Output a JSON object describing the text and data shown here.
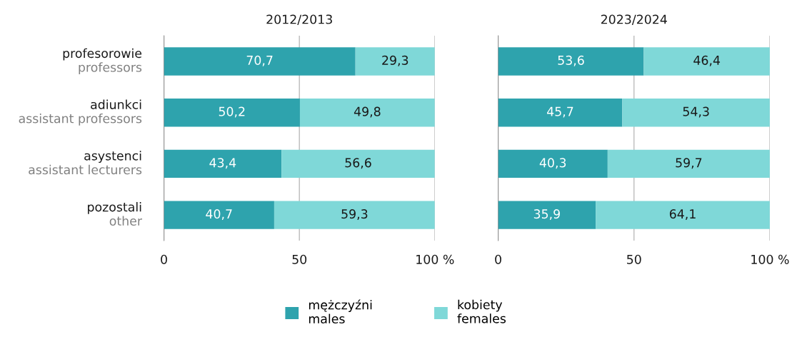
{
  "chart_data": [
    {
      "type": "bar",
      "title": "2012/2013",
      "orientation": "horizontal",
      "stacked": true,
      "categories": [
        "profesorowie\nprofessors",
        "adiunkci\nassistant professors",
        "asystenci\nassistant lecturers",
        "pozostali\nother"
      ],
      "series": [
        {
          "name": "mężczyźni\nmales",
          "color": "#2ea3ad",
          "values": [
            70.7,
            50.2,
            43.4,
            40.7
          ],
          "value_labels": [
            "70,7",
            "50,2",
            "43,4",
            "40,7"
          ]
        },
        {
          "name": "kobiety\nfemales",
          "color": "#7fd8d8",
          "values": [
            29.3,
            49.8,
            56.6,
            59.3
          ],
          "value_labels": [
            "29,3",
            "49,8",
            "56,6",
            "59,3"
          ]
        }
      ],
      "xlim": [
        0,
        100
      ],
      "xticks": [
        0,
        50,
        {
          "value": 100,
          "label": "100 %"
        }
      ],
      "grid": "x",
      "legend": "bottom"
    },
    {
      "type": "bar",
      "title": "2023/2024",
      "orientation": "horizontal",
      "stacked": true,
      "categories": [
        null,
        null,
        null,
        null
      ],
      "series": [
        {
          "color": "#2ea3ad",
          "values": [
            53.6,
            45.7,
            40.3,
            35.9
          ],
          "value_labels": [
            "53,6",
            "45,7",
            "40,3",
            "35,9"
          ]
        },
        {
          "color": "#7fd8d8",
          "values": [
            46.4,
            54.3,
            59.7,
            64.1
          ],
          "value_labels": [
            "46,4",
            "54,3",
            "59,7",
            "64,1"
          ]
        }
      ],
      "xlim": [
        0,
        100
      ],
      "xticks": [
        0,
        50,
        {
          "value": 100,
          "label": "100 %"
        }
      ],
      "grid": "x",
      "tick_labels": "x"
    }
  ]
}
